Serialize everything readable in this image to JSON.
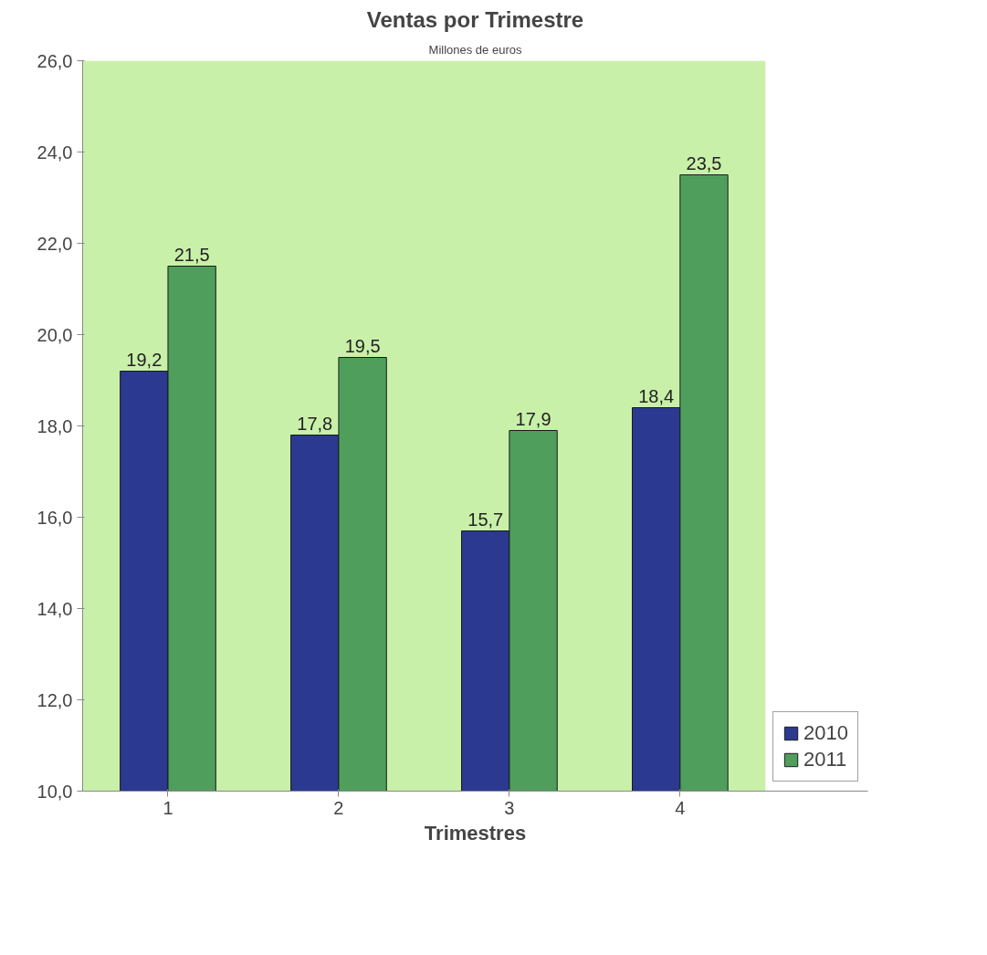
{
  "chart_data": {
    "type": "bar",
    "title": "Ventas por Trimestre",
    "subtitle": "Millones de euros",
    "xlabel": "Trimestres",
    "categories": [
      "1",
      "2",
      "3",
      "4"
    ],
    "series": [
      {
        "name": "2010",
        "color": "#2b3990",
        "values": [
          19.2,
          17.8,
          15.7,
          18.4
        ],
        "value_labels": [
          "19,2",
          "17,8",
          "15,7",
          "18,4"
        ]
      },
      {
        "name": "2011",
        "color": "#4f9e5c",
        "values": [
          21.5,
          19.5,
          17.9,
          23.5
        ],
        "value_labels": [
          "21,5",
          "19,5",
          "17,9",
          "23,5"
        ]
      }
    ],
    "ylim": [
      10,
      26
    ],
    "yticks": [
      {
        "value": 10,
        "label": "10,0"
      },
      {
        "value": 12,
        "label": "12,0"
      },
      {
        "value": 14,
        "label": "14,0"
      },
      {
        "value": 16,
        "label": "16,0"
      },
      {
        "value": 18,
        "label": "18,0"
      },
      {
        "value": 20,
        "label": "20,0"
      },
      {
        "value": 22,
        "label": "22,0"
      },
      {
        "value": 24,
        "label": "24,0"
      },
      {
        "value": 26,
        "label": "26,0"
      }
    ],
    "legend": "bottom right"
  }
}
